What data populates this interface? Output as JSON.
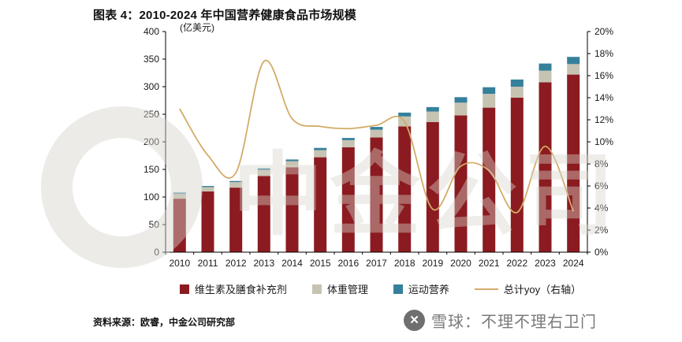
{
  "title": "图表 4：2010-2024 年中国营养健康食品市场规模",
  "unit_label": "(亿美元)",
  "footer": {
    "source": "资料来源：欧睿，中金公司研究部",
    "brand": "雪球：不理不理右卫门"
  },
  "watermark": {
    "text": "中金公司"
  },
  "colors": {
    "vitamins": "#8B1B20",
    "weight": "#C7C3B2",
    "sports": "#35809B",
    "yoy_line": "#D2AC68",
    "axis": "#000000",
    "text": "#1A1A1A"
  },
  "chart_data": {
    "type": "bar",
    "subtype": "stacked-bars-with-secondary-axis-line",
    "title": "2010-2024 年中国营养健康食品市场规模",
    "categories": [
      "2010",
      "2011",
      "2012",
      "2013",
      "2014",
      "2015",
      "2016",
      "2017",
      "2018",
      "2019",
      "2020",
      "2021",
      "2022",
      "2023",
      "2024"
    ],
    "series": [
      {
        "name": "维生素及膳食补充剂",
        "type": "bar",
        "axis": "left",
        "color_key": "vitamins",
        "values": [
          97,
          110,
          117,
          138,
          154,
          172,
          190,
          208,
          228,
          236,
          248,
          262,
          280,
          308,
          322
        ]
      },
      {
        "name": "体重管理",
        "type": "bar",
        "axis": "left",
        "color_key": "weight",
        "values": [
          9,
          8,
          10,
          11,
          11,
          13,
          13,
          14,
          18,
          19,
          23,
          25,
          20,
          21,
          19
        ]
      },
      {
        "name": "运动营养",
        "type": "bar",
        "axis": "left",
        "color_key": "sports",
        "values": [
          2,
          2,
          2,
          3,
          3,
          4,
          4,
          5,
          7,
          8,
          10,
          12,
          13,
          13,
          13
        ]
      },
      {
        "name": "总计yoy（右轴）",
        "type": "line",
        "axis": "right",
        "color_key": "yoy_line",
        "values": [
          13.0,
          8.8,
          7.2,
          17.3,
          12.1,
          11.4,
          11.2,
          11.5,
          11.8,
          3.9,
          7.8,
          7.4,
          3.6,
          9.6,
          3.7
        ]
      }
    ],
    "left_axis": {
      "label": "(亿美元)",
      "min": 0,
      "max": 400,
      "step": 50
    },
    "right_axis": {
      "min": 0,
      "max": 20,
      "step": 2,
      "suffix": "%"
    },
    "legend_position": "bottom",
    "grid": false
  }
}
